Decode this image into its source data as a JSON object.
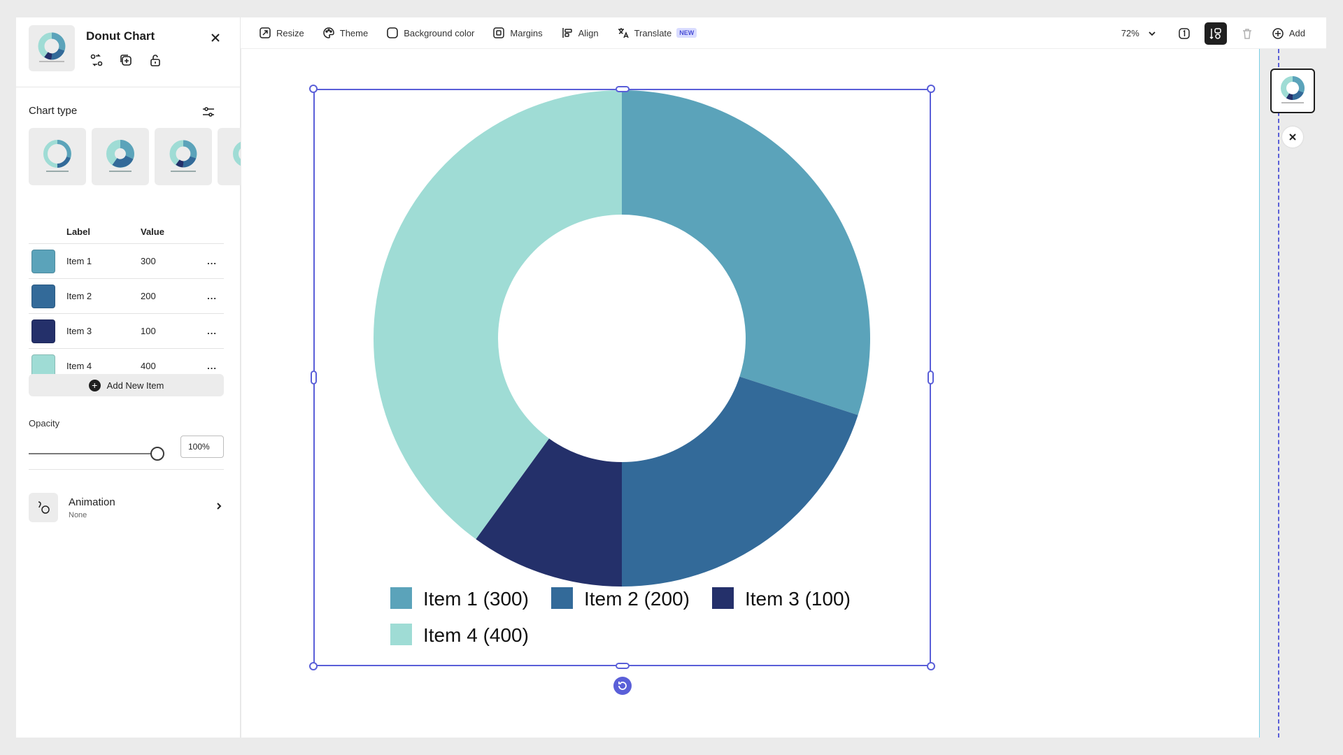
{
  "panel": {
    "title": "Donut Chart",
    "chart_type_title": "Chart type",
    "table_headers": {
      "label": "Label",
      "value": "Value"
    },
    "add_item_label": "Add New Item",
    "opacity_label": "Opacity",
    "opacity_value": "100%",
    "opacity_level": 1.0,
    "animation_title": "Animation",
    "animation_value": "None",
    "more_glyph": "..."
  },
  "toolbar": {
    "resize": "Resize",
    "theme": "Theme",
    "background_color": "Background color",
    "margins": "Margins",
    "align": "Align",
    "translate": "Translate",
    "new_badge": "NEW",
    "zoom": "72%",
    "add": "Add"
  },
  "colors": {
    "item1": "#5ba3ba",
    "item2": "#336a99",
    "item3": "#24306a",
    "item4": "#9fdcd5",
    "selection": "#5a5fd8"
  },
  "chart_data": {
    "type": "donut",
    "categories": [
      "Item 1",
      "Item 2",
      "Item 3",
      "Item 4"
    ],
    "values": [
      300,
      200,
      100,
      400
    ],
    "legend_labels": [
      "Item 1 (300)",
      "Item 2 (200)",
      "Item 3 (100)",
      "Item 4 (400)"
    ],
    "colors": [
      "#5ba3ba",
      "#336a99",
      "#24306a",
      "#9fdcd5"
    ],
    "legend_position": "bottom",
    "title": ""
  }
}
